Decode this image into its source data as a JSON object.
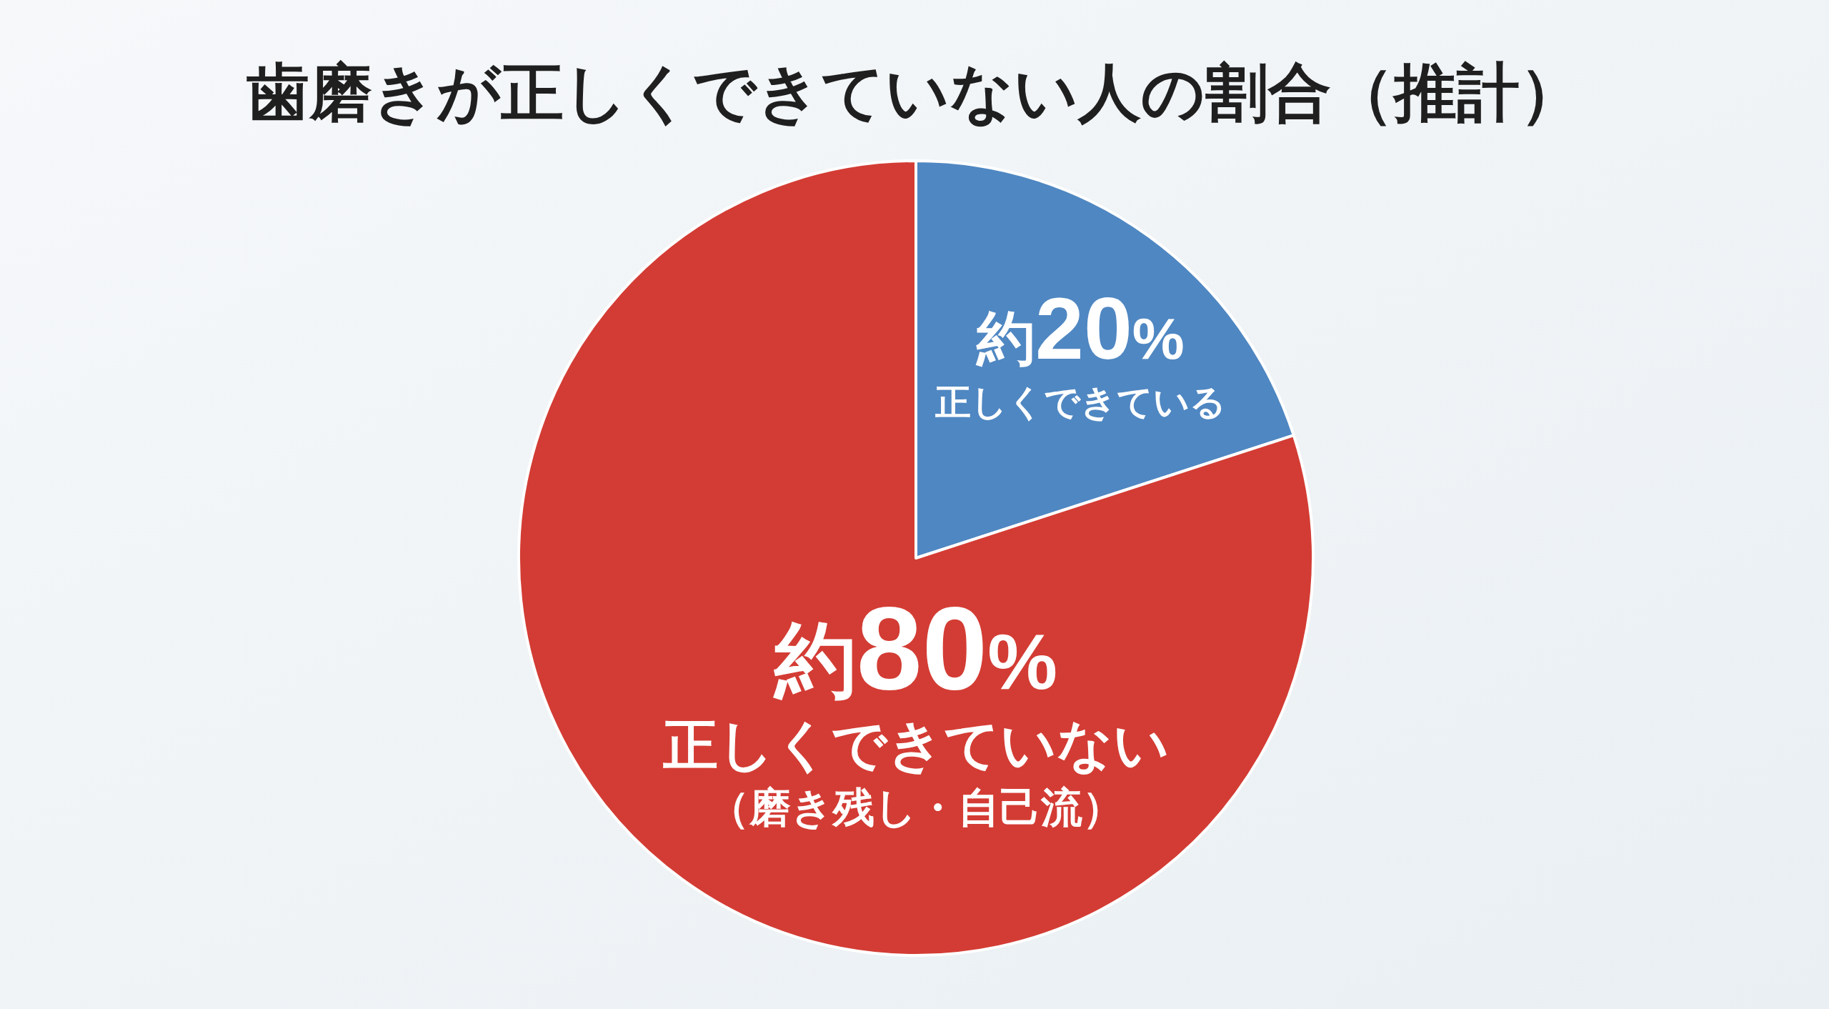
{
  "chart_data": {
    "type": "pie",
    "title": "歯磨きが正しくできていない人の割合（推計）",
    "categories": [
      "正しくできている",
      "正しくできていない（磨き残し・自己流）"
    ],
    "values": [
      20,
      80
    ],
    "colors": [
      "#4f87c2",
      "#d33c34"
    ],
    "value_labels": [
      "約20%",
      "約80%"
    ]
  }
}
